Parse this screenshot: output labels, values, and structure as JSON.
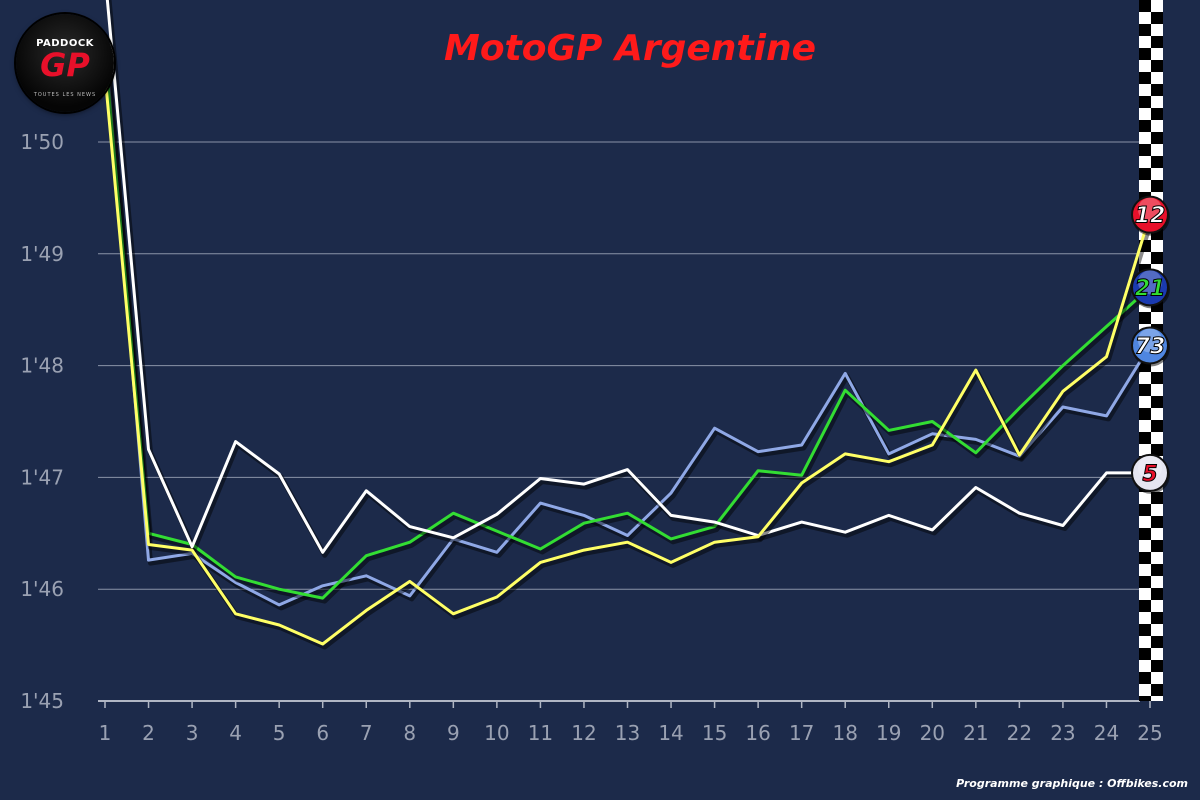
{
  "title": "MotoGP Argentine",
  "credit": "Programme graphique : Offbikes.com",
  "logo": {
    "top": "PADDOCK",
    "main": "GP",
    "bottom": "TOUTES LES NEWS"
  },
  "colors": {
    "background": "#1c2a4a",
    "title": "#ff1a1a",
    "grid": "#8a93a8",
    "axis_text": "#9aa1b2"
  },
  "chart_data": {
    "type": "line",
    "title": "MotoGP Argentine",
    "xlabel": "",
    "ylabel": "",
    "x": [
      1,
      2,
      3,
      4,
      5,
      6,
      7,
      8,
      9,
      10,
      11,
      12,
      13,
      14,
      15,
      16,
      17,
      18,
      19,
      20,
      21,
      22,
      23,
      24,
      25
    ],
    "xlim": [
      1,
      25
    ],
    "ylim": [
      105,
      110.5
    ],
    "yticks": [
      105,
      106,
      107,
      108,
      109,
      110
    ],
    "ytick_labels": [
      "1'45",
      "1'46",
      "1'47",
      "1'48",
      "1'49",
      "1'50"
    ],
    "grid": "horizontal",
    "finish_flag": "checkered line at lap 25",
    "series": [
      {
        "rider_badge": "73",
        "color": "#8fa8e6",
        "badge_color": "#4f86e0",
        "values": [
          110.9,
          106.26,
          106.32,
          106.06,
          105.86,
          106.03,
          106.12,
          105.94,
          106.45,
          106.33,
          106.77,
          106.66,
          106.48,
          106.86,
          107.44,
          107.23,
          107.29,
          107.93,
          107.21,
          107.39,
          107.34,
          107.19,
          107.63,
          107.55,
          108.18
        ]
      },
      {
        "rider_badge": "21",
        "color": "#33dd33",
        "badge_color": "#1a3ab0",
        "values": [
          110.8,
          106.5,
          106.4,
          106.11,
          106.0,
          105.92,
          106.3,
          106.42,
          106.68,
          106.52,
          106.36,
          106.59,
          106.68,
          106.45,
          106.56,
          107.06,
          107.02,
          107.78,
          107.42,
          107.5,
          107.22,
          107.62,
          108.0,
          108.35,
          108.7
        ]
      },
      {
        "rider_badge": "5",
        "color": "#ffffff",
        "badge_color": "#e5e5f0",
        "values": [
          111.5,
          107.25,
          106.38,
          107.32,
          107.03,
          106.33,
          106.88,
          106.56,
          106.46,
          106.67,
          106.99,
          106.94,
          107.07,
          106.66,
          106.6,
          106.48,
          106.6,
          106.51,
          106.66,
          106.53,
          106.91,
          106.68,
          106.57,
          107.04,
          107.04
        ]
      },
      {
        "rider_badge": "12",
        "color": "#ffff66",
        "badge_color": "#e8102a",
        "values": [
          110.6,
          106.4,
          106.35,
          105.78,
          105.68,
          105.51,
          105.81,
          106.07,
          105.78,
          105.93,
          106.24,
          106.35,
          106.42,
          106.24,
          106.42,
          106.47,
          106.95,
          107.21,
          107.14,
          107.29,
          107.96,
          107.2,
          107.77,
          108.08,
          109.35
        ]
      }
    ]
  }
}
